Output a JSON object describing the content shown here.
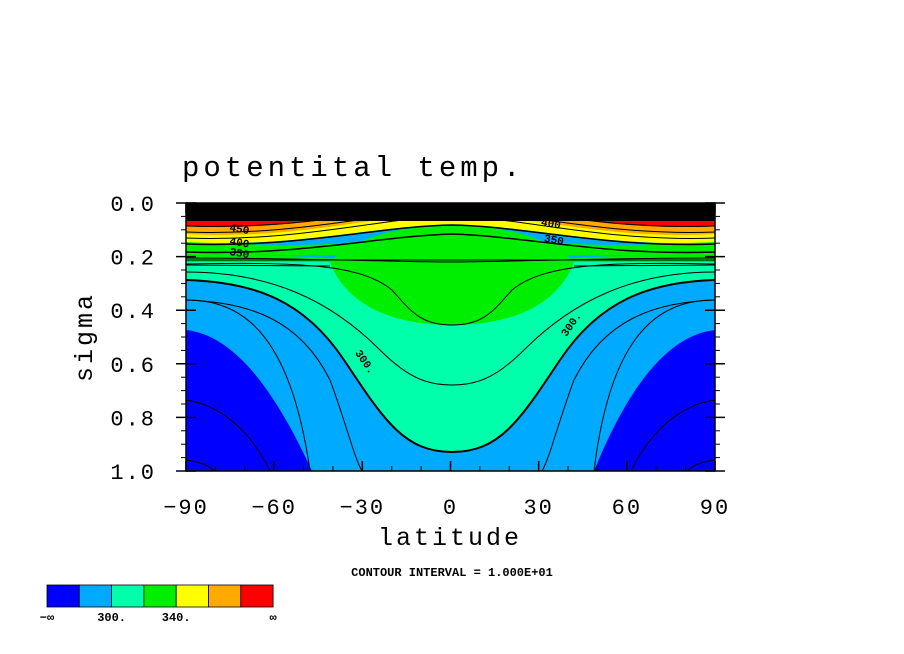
{
  "chart_data": {
    "type": "contour",
    "title": "potentital temp.",
    "xlabel": "latitude",
    "ylabel": "sigma",
    "xlim": [
      -90,
      90
    ],
    "ylim": [
      1.0,
      0.0
    ],
    "x_ticks": [
      -90,
      -60,
      -30,
      0,
      30,
      60,
      90
    ],
    "x_tick_labels": [
      "−90",
      "−60",
      "−30",
      "0",
      "30",
      "60",
      "90"
    ],
    "y_ticks": [
      0.0,
      0.2,
      0.4,
      0.6,
      0.8,
      1.0
    ],
    "y_tick_labels": [
      "0.0",
      "0.2",
      "0.4",
      "0.6",
      "0.8",
      "1.0"
    ],
    "contour_interval_text": "CONTOUR INTERVAL = 1.000E+01",
    "contour_labels": [
      {
        "text": "300.",
        "lat": -30,
        "sigma": 0.6
      },
      {
        "text": "300.",
        "lat": 42,
        "sigma": 0.46
      },
      {
        "text": "350",
        "lat": 35,
        "sigma": 0.15
      },
      {
        "text": "400",
        "lat": -72,
        "sigma": 0.16
      },
      {
        "text": "400",
        "lat": 34,
        "sigma": 0.09
      },
      {
        "text": "450",
        "lat": -72,
        "sigma": 0.11
      },
      {
        "text": "450",
        "lat": 34,
        "sigma": 0.05
      },
      {
        "text": "350",
        "lat": -72,
        "sigma": 0.2
      }
    ],
    "colorbar": {
      "colors": [
        "#0000ff",
        "#00aaff",
        "#00ffaa",
        "#00ee00",
        "#ffff00",
        "#ffaa00",
        "#ff0000"
      ],
      "labels": [
        "−∞",
        "300.",
        "340.",
        "∞"
      ],
      "label_values": [
        null,
        300,
        340,
        null
      ]
    },
    "grid": false
  }
}
